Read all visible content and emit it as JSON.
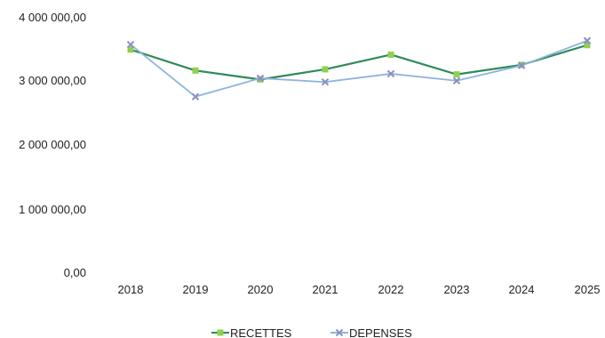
{
  "chart_data": {
    "type": "line",
    "categories": [
      "2018",
      "2019",
      "2020",
      "2021",
      "2022",
      "2023",
      "2024",
      "2025"
    ],
    "series": [
      {
        "name": "RECETTES",
        "color": "#2e8b57",
        "marker_color": "#8fd14f",
        "marker": "square",
        "values": [
          3500000,
          3170000,
          3030000,
          3190000,
          3420000,
          3110000,
          3260000,
          3570000
        ]
      },
      {
        "name": "DEPENSES",
        "color": "#8fb3e0",
        "marker_color": "#8a8fc0",
        "marker": "x",
        "values": [
          3580000,
          2760000,
          3050000,
          2990000,
          3120000,
          3010000,
          3250000,
          3640000
        ]
      }
    ],
    "y_ticks": [
      "0,00",
      "1 000 000,00",
      "2 000 000,00",
      "3 000 000,00",
      "4 000 000,00"
    ],
    "ylim": [
      0,
      4000000
    ],
    "grid": false,
    "legend_position": "bottom-center"
  }
}
